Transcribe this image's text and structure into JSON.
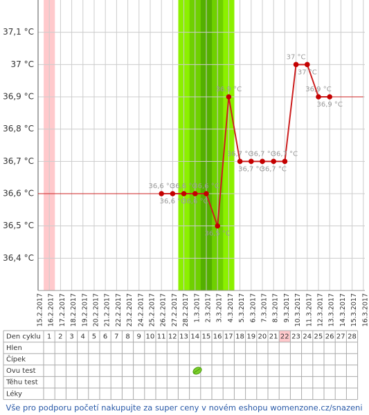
{
  "chart_data": {
    "type": "line",
    "categories": [
      "15.2.2017",
      "16.2.2017",
      "17.2.2017",
      "18.2.2017",
      "19.2.2017",
      "20.2.2017",
      "21.2.2017",
      "22.2.2017",
      "23.2.2017",
      "24.2.2017",
      "25.2.2017",
      "26.2.2017",
      "27.2.2017",
      "28.2.2017",
      "1.3.2017",
      "2.3.2017",
      "3.3.2017",
      "4.3.2017",
      "5.3.2017",
      "6.3.2017",
      "7.3.2017",
      "8.3.2017",
      "9.3.2017",
      "10.3.2017",
      "11.3.2017",
      "12.3.2017",
      "13.3.2017",
      "14.3.2017",
      "15.3.2017",
      "16.3.2017"
    ],
    "values": [
      null,
      null,
      null,
      null,
      null,
      null,
      null,
      null,
      null,
      null,
      null,
      36.6,
      36.6,
      36.6,
      36.6,
      36.6,
      36.5,
      36.9,
      36.7,
      36.7,
      36.7,
      36.7,
      36.7,
      37,
      37,
      36.9,
      36.9,
      null,
      null,
      null
    ],
    "value_labels": [
      null,
      null,
      null,
      null,
      null,
      null,
      null,
      null,
      null,
      null,
      null,
      "36,6 °C",
      "36,6 °C",
      "36,6 °C",
      "36,6 °C",
      "36,6 °C",
      "36,5 °C",
      "36,9 °C",
      "36,7 °C",
      "36,7 °C",
      "36,7 °C",
      "36,7 °C",
      "36,7 °C",
      "37 °C",
      "37 °C",
      "36,9 °C",
      "36,9 °C",
      null,
      null,
      null
    ],
    "color": "#cc1f1f",
    "ylim": [
      36.3,
      37.2
    ],
    "yticks": [
      {
        "value": 36.4,
        "label": "36,4 °C"
      },
      {
        "value": 36.5,
        "label": "36,5 °C"
      },
      {
        "value": 36.6,
        "label": "36,6 °C"
      },
      {
        "value": 36.7,
        "label": "36,7 °C"
      },
      {
        "value": 36.8,
        "label": "36,8 °C"
      },
      {
        "value": 36.9,
        "label": "36,9 °C"
      },
      {
        "value": 37,
        "label": "37 °C"
      },
      {
        "value": 37.1,
        "label": "37,1 °C"
      }
    ],
    "grid": true
  },
  "table": {
    "header": "Den cyklu",
    "days": [
      1,
      2,
      3,
      4,
      5,
      6,
      7,
      8,
      9,
      10,
      11,
      12,
      13,
      14,
      15,
      16,
      17,
      18,
      19,
      20,
      21,
      22,
      23,
      24,
      25,
      26,
      27,
      28
    ],
    "rows": [
      "Hlen",
      "Čípek",
      "Ovu test",
      "Těhu test",
      "Léky"
    ]
  },
  "footer": "Vše pro podporu početí nakupujte za super ceny v novém eshopu womenzone.cz/snazeni"
}
